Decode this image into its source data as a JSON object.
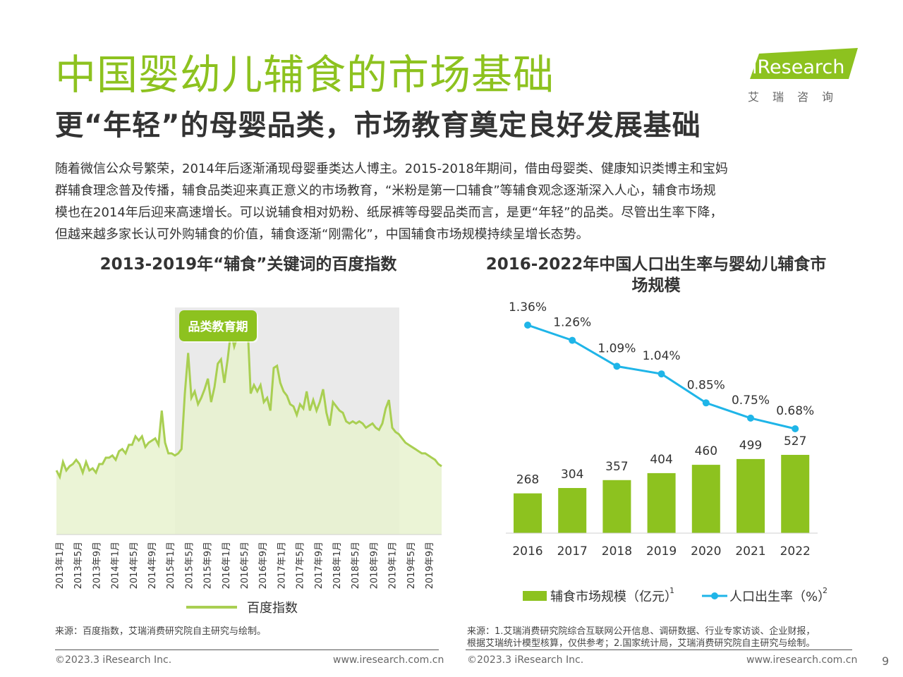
{
  "header": {
    "title": "中国婴幼儿辅食的市场基础",
    "subtitle": "更“年轻”的母婴品类，市场教育奠定良好发展基础"
  },
  "logo": {
    "brand": "iResearch",
    "cn": "艾瑞咨询",
    "accent": "#8dc21f"
  },
  "intro": {
    "lines": [
      "随着微信公众号繁荣，2014年后逐渐涌现母婴垂类达人博主。2015-2018年期间，借由母婴类、健康知识类博主和宝妈",
      "群辅食理念普及传播，辅食品类迎来真正意义的市场教育，“米粉是第一口辅食”等辅食观念逐渐深入人心，辅食市场规",
      "模也在2014年后迎来高速增长。可以说辅食相对奶粉、纸尿裤等母婴品类而言，是更“年轻”的品类。尽管出生率下降，",
      "但越来越多家长认可外购辅食的价值，辅食逐渐“刚需化”，中国辅食市场规模持续呈增长态势。"
    ]
  },
  "chart_data": [
    {
      "type": "area",
      "title": "2013-2019年“辅食”关键词的百度指数",
      "legend": "百度指数",
      "legend_position": "bottom",
      "shaded_period": {
        "label": "品类教育期",
        "from": "2015年1月",
        "to": "2019年1月"
      },
      "x_ticks": [
        "2013年1月",
        "2013年5月",
        "2013年9月",
        "2014年1月",
        "2014年5月",
        "2014年9月",
        "2015年1月",
        "2015年5月",
        "2015年9月",
        "2016年1月",
        "2016年5月",
        "2016年9月",
        "2017年1月",
        "2017年5月",
        "2017年9月",
        "2018年1月",
        "2018年5月",
        "2018年9月",
        "2019年1月",
        "2019年5月",
        "2019年9月"
      ],
      "y_axis_visible": false,
      "values": [
        30,
        27,
        34,
        30,
        32,
        33,
        35,
        33,
        29,
        34,
        30,
        31,
        29,
        33,
        33,
        36,
        36,
        37,
        35,
        39,
        40,
        38,
        42,
        42,
        46,
        44,
        46,
        41,
        43,
        44,
        45,
        42,
        58,
        43,
        38,
        38,
        37,
        38,
        40,
        66,
        85,
        64,
        67,
        61,
        64,
        68,
        73,
        62,
        69,
        80,
        82,
        71,
        82,
        95,
        88,
        93,
        96,
        103,
        100,
        66,
        70,
        67,
        70,
        62,
        64,
        58,
        78,
        79,
        71,
        67,
        65,
        61,
        60,
        56,
        61,
        59,
        67,
        58,
        63,
        58,
        62,
        68,
        57,
        51,
        62,
        60,
        58,
        57,
        53,
        52,
        53,
        52,
        53,
        52,
        50,
        51,
        52,
        50,
        49,
        52,
        59,
        63,
        50,
        48,
        47,
        45,
        43,
        42,
        41,
        40,
        39,
        38,
        38,
        37,
        36,
        35,
        33,
        32
      ]
    },
    {
      "type": "bar+line",
      "title": "2016-2022年中国人口出生率与婴幼儿辅食市场规模",
      "categories": [
        "2016",
        "2017",
        "2018",
        "2019",
        "2020",
        "2021",
        "2022"
      ],
      "series": [
        {
          "name": "辅食市场规模（亿元）",
          "superscript": "1",
          "type": "bar",
          "color": "#8dc21f",
          "values": [
            268,
            304,
            357,
            404,
            460,
            499,
            527
          ]
        },
        {
          "name": "人口出生率（%）",
          "superscript": "2",
          "type": "line",
          "color": "#1fb5e8",
          "values": [
            1.36,
            1.26,
            1.09,
            1.04,
            0.85,
            0.75,
            0.68
          ],
          "labels": [
            "1.36%",
            "1.26%",
            "1.09%",
            "1.04%",
            "0.85%",
            "0.75%",
            "0.68%"
          ]
        }
      ],
      "legend_position": "bottom"
    }
  ],
  "sources": {
    "left": "来源：百度指数，艾瑞消费研究院自主研究与绘制。",
    "right_line1": "来源：1.艾瑞消费研究院综合互联网公开信息、调研数据、行业专家访谈、企业财报，",
    "right_line2": "根据艾瑞统计模型核算，仅供参考；2.国家统计局，艾瑞消费研究院自主研究与绘制。"
  },
  "footer": {
    "left_copyright": "©2023.3 iResearch Inc.",
    "left_site": "www.iresearch.com.cn",
    "right_copyright": "©2023.3 iResearch Inc.",
    "right_site": "www.iresearch.com.cn",
    "page": "9"
  }
}
